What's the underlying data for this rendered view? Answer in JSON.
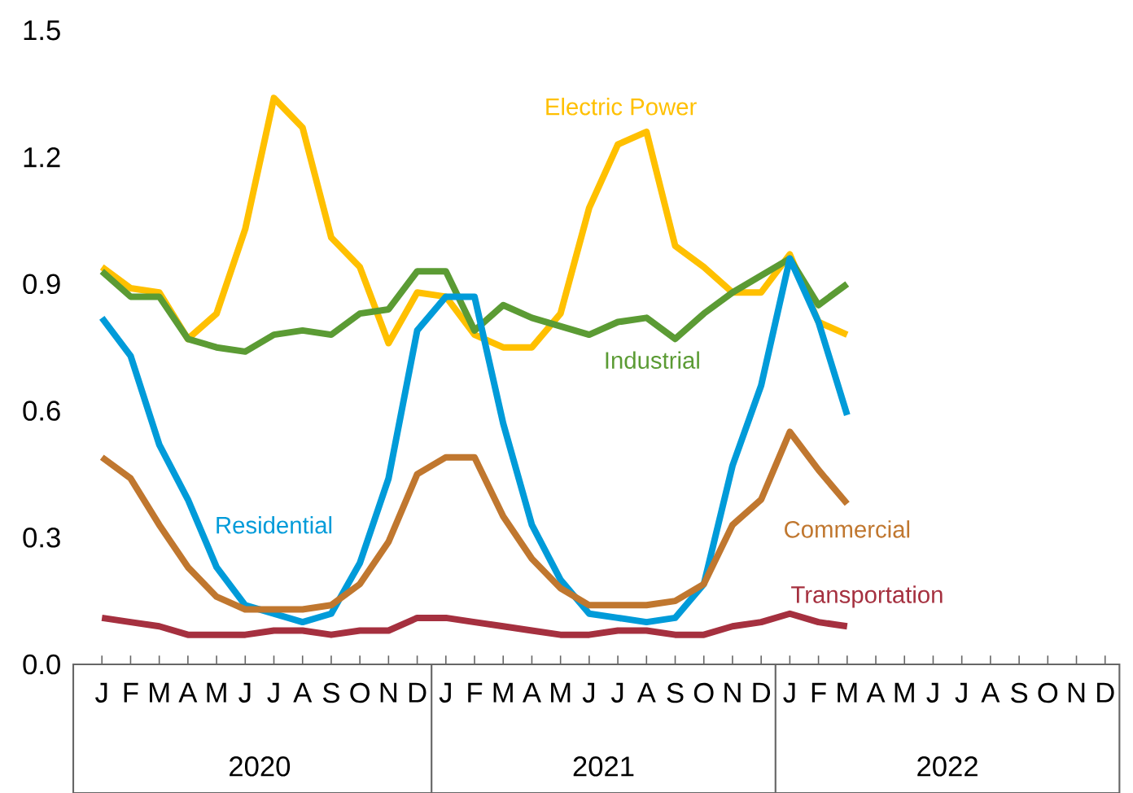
{
  "chart_data": {
    "type": "line",
    "categories": [
      "J",
      "F",
      "M",
      "A",
      "M",
      "J",
      "J",
      "A",
      "S",
      "O",
      "N",
      "D",
      "J",
      "F",
      "M",
      "A",
      "M",
      "J",
      "J",
      "A",
      "S",
      "O",
      "N",
      "D",
      "J",
      "F",
      "M",
      "A",
      "M",
      "J",
      "J",
      "A",
      "S",
      "O",
      "N",
      "D"
    ],
    "series": [
      {
        "name": "Electric Power",
        "color": "#ffc000",
        "values": [
          0.94,
          0.89,
          0.88,
          0.77,
          0.83,
          1.03,
          1.34,
          1.27,
          1.01,
          0.94,
          0.76,
          0.88,
          0.87,
          0.78,
          0.75,
          0.75,
          0.83,
          1.08,
          1.23,
          1.26,
          0.99,
          0.94,
          0.88,
          0.88,
          0.97,
          0.81,
          0.78,
          null,
          null,
          null,
          null,
          null,
          null,
          null,
          null,
          null
        ]
      },
      {
        "name": "Industrial",
        "color": "#5b9b34",
        "values": [
          0.93,
          0.87,
          0.87,
          0.77,
          0.75,
          0.74,
          0.78,
          0.79,
          0.78,
          0.83,
          0.84,
          0.93,
          0.93,
          0.79,
          0.85,
          0.82,
          0.8,
          0.78,
          0.81,
          0.82,
          0.77,
          0.83,
          0.88,
          0.92,
          0.96,
          0.85,
          0.9,
          null,
          null,
          null,
          null,
          null,
          null,
          null,
          null,
          null
        ]
      },
      {
        "name": "Residential",
        "color": "#009bd9",
        "values": [
          0.82,
          0.73,
          0.52,
          0.39,
          0.23,
          0.14,
          0.12,
          0.1,
          0.12,
          0.24,
          0.44,
          0.79,
          0.87,
          0.87,
          0.57,
          0.33,
          0.2,
          0.12,
          0.11,
          0.1,
          0.11,
          0.19,
          0.47,
          0.66,
          0.96,
          0.81,
          0.59,
          null,
          null,
          null,
          null,
          null,
          null,
          null,
          null,
          null
        ]
      },
      {
        "name": "Commercial",
        "color": "#c0772f",
        "values": [
          0.49,
          0.44,
          0.33,
          0.23,
          0.16,
          0.13,
          0.13,
          0.13,
          0.14,
          0.19,
          0.29,
          0.45,
          0.49,
          0.49,
          0.35,
          0.25,
          0.18,
          0.14,
          0.14,
          0.14,
          0.15,
          0.19,
          0.33,
          0.39,
          0.55,
          0.46,
          0.38,
          null,
          null,
          null,
          null,
          null,
          null,
          null,
          null,
          null
        ]
      },
      {
        "name": "Transportation",
        "color": "#a5303f",
        "values": [
          0.11,
          0.1,
          0.09,
          0.07,
          0.07,
          0.07,
          0.08,
          0.08,
          0.07,
          0.08,
          0.08,
          0.11,
          0.11,
          0.1,
          0.09,
          0.08,
          0.07,
          0.07,
          0.08,
          0.08,
          0.07,
          0.07,
          0.09,
          0.1,
          0.12,
          0.1,
          0.09,
          null,
          null,
          null,
          null,
          null,
          null,
          null,
          null,
          null
        ]
      }
    ],
    "ylim": [
      0,
      1.5
    ],
    "yticks": [
      {
        "value": 0,
        "label": "0.0"
      },
      0.3,
      0.6,
      0.9,
      1.2,
      1.5
    ],
    "grid": false,
    "legend": false,
    "marker": "none",
    "line_style": "solid",
    "annotations": [
      "2020",
      "2021",
      "2022"
    ]
  }
}
